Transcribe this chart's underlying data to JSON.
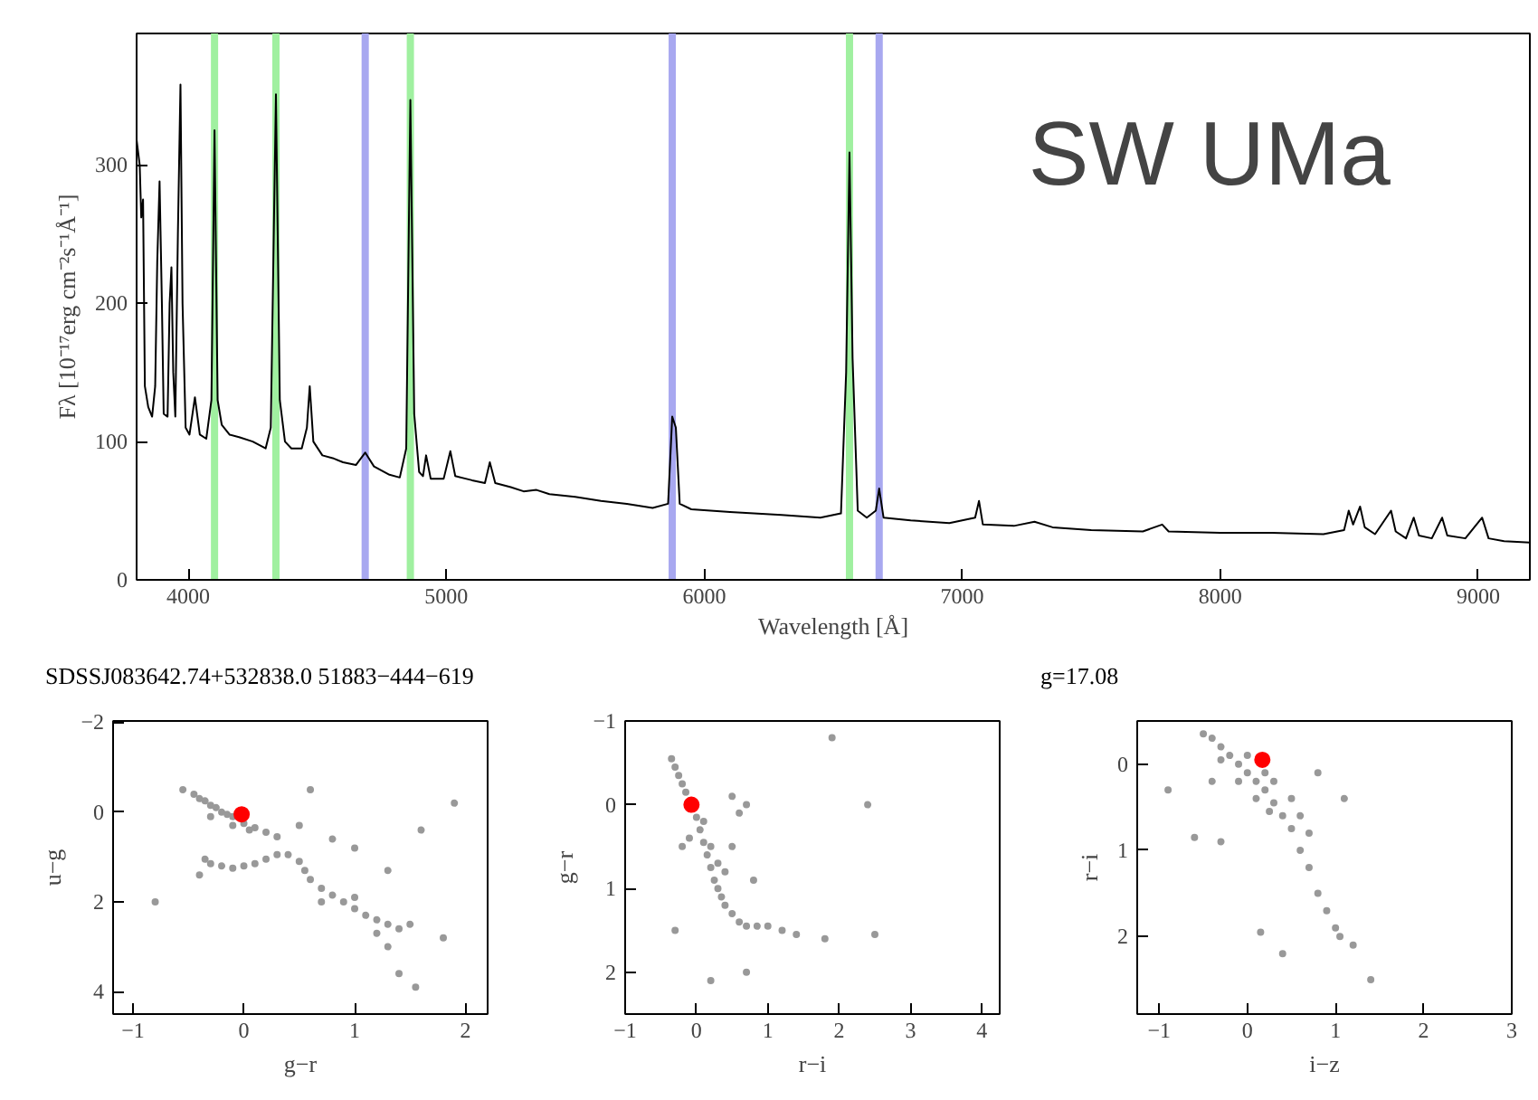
{
  "chart_data": [
    {
      "type": "line",
      "xlabel": "Wavelength [Å]",
      "ylabel": "Fλ [10⁻¹⁷erg cm⁻²s⁻¹Å⁻¹]",
      "annotations": [
        "SW UMa",
        "SDSSJ083642.74+532838.0  51883−444−619",
        "g=17.08"
      ],
      "xlim": [
        3800,
        9200
      ],
      "ylim": [
        0,
        395
      ],
      "xticks": [
        4000,
        5000,
        6000,
        7000,
        8000,
        9000
      ],
      "yticks": [
        0,
        100,
        200,
        300
      ],
      "grid": false,
      "marker": "none",
      "line_style": "solid",
      "ref_lines": [
        {
          "axis": "x",
          "value": 4102,
          "color": "#a0f0a0"
        },
        {
          "axis": "x",
          "value": 4340,
          "color": "#a0f0a0"
        },
        {
          "axis": "x",
          "value": 4686,
          "color": "#a8a8f0"
        },
        {
          "axis": "x",
          "value": 4861,
          "color": "#a0f0a0"
        },
        {
          "axis": "x",
          "value": 5876,
          "color": "#a8a8f0"
        },
        {
          "axis": "x",
          "value": 6563,
          "color": "#a0f0a0"
        },
        {
          "axis": "x",
          "value": 6678,
          "color": "#a8a8f0"
        }
      ],
      "series": [
        {
          "color": "#000000",
          "x": [
            3800,
            3812,
            3818,
            3825,
            3832,
            3845,
            3860,
            3872,
            3880,
            3889,
            3898,
            3905,
            3920,
            3928,
            3935,
            3942,
            3950,
            3960,
            3970,
            3978,
            3990,
            4005,
            4026,
            4045,
            4070,
            4090,
            4102,
            4114,
            4130,
            4160,
            4200,
            4250,
            4300,
            4320,
            4340,
            4355,
            4375,
            4400,
            4440,
            4460,
            4471,
            4485,
            4520,
            4560,
            4600,
            4650,
            4686,
            4720,
            4780,
            4820,
            4845,
            4861,
            4876,
            4895,
            4910,
            4922,
            4940,
            4990,
            5016,
            5035,
            5100,
            5150,
            5169,
            5190,
            5250,
            5300,
            5350,
            5400,
            5500,
            5600,
            5700,
            5800,
            5860,
            5876,
            5890,
            5905,
            5950,
            6100,
            6300,
            6450,
            6530,
            6550,
            6563,
            6575,
            6595,
            6630,
            6665,
            6678,
            6695,
            6800,
            6950,
            7050,
            7065,
            7080,
            7200,
            7280,
            7350,
            7500,
            7700,
            7775,
            7800,
            8000,
            8200,
            8400,
            8480,
            8498,
            8515,
            8542,
            8560,
            8600,
            8662,
            8680,
            8720,
            8750,
            8770,
            8820,
            8860,
            8880,
            8950,
            9015,
            9040,
            9100,
            9200
          ],
          "values": [
            318,
            300,
            262,
            275,
            140,
            125,
            118,
            140,
            230,
            288,
            200,
            120,
            118,
            200,
            226,
            150,
            118,
            250,
            358,
            200,
            110,
            105,
            132,
            105,
            102,
            130,
            325,
            130,
            112,
            105,
            103,
            100,
            95,
            110,
            351,
            130,
            100,
            95,
            95,
            110,
            140,
            100,
            90,
            88,
            85,
            83,
            92,
            82,
            76,
            74,
            95,
            347,
            120,
            78,
            75,
            90,
            73,
            73,
            93,
            75,
            72,
            70,
            85,
            70,
            67,
            64,
            65,
            62,
            60,
            57,
            55,
            52,
            55,
            118,
            110,
            55,
            51,
            49,
            47,
            45,
            48,
            150,
            309,
            160,
            50,
            45,
            50,
            66,
            45,
            43,
            41,
            45,
            57,
            40,
            39,
            42,
            38,
            36,
            35,
            40,
            35,
            34,
            34,
            33,
            36,
            50,
            40,
            53,
            38,
            33,
            50,
            35,
            30,
            45,
            32,
            30,
            45,
            32,
            30,
            45,
            30,
            28,
            27
          ]
        }
      ]
    },
    {
      "type": "scatter",
      "xlabel": "g−r",
      "ylabel": "u−g",
      "xlim": [
        -1.18,
        2.2
      ],
      "ylim": [
        4.5,
        -2.03
      ],
      "xticks": [
        -1,
        0,
        1,
        2
      ],
      "yticks": [
        -2,
        0,
        2,
        4
      ],
      "grid": false,
      "marker": "circle",
      "series": [
        {
          "color": "#999999",
          "x": [
            -0.55,
            -0.45,
            -0.4,
            -0.35,
            -0.3,
            -0.25,
            -0.2,
            -0.15,
            -0.1,
            0,
            0.1,
            0.2,
            0.3,
            -0.3,
            -0.1,
            0.05,
            -0.35,
            -0.3,
            -0.2,
            -0.1,
            0,
            0.1,
            0.2,
            0.3,
            0.4,
            0.5,
            0.55,
            0.6,
            0.7,
            0.8,
            0.9,
            1.0,
            1.1,
            1.2,
            1.3,
            1.4,
            1.5,
            1.0,
            1.2,
            0.7,
            0.5,
            0.8,
            1.0,
            1.3,
            1.6,
            1.3,
            1.4,
            1.55,
            1.8,
            -0.8,
            -0.4,
            0.6,
            1.9
          ],
          "values": [
            -0.5,
            -0.4,
            -0.3,
            -0.25,
            -0.15,
            -0.1,
            0.0,
            0.05,
            0.1,
            0.25,
            0.35,
            0.45,
            0.55,
            0.1,
            0.3,
            0.4,
            1.05,
            1.15,
            1.2,
            1.25,
            1.2,
            1.15,
            1.05,
            0.95,
            0.95,
            1.1,
            1.3,
            1.5,
            1.7,
            1.85,
            2.0,
            2.15,
            2.3,
            2.4,
            2.5,
            2.6,
            2.5,
            1.9,
            2.7,
            2.0,
            0.3,
            0.6,
            0.8,
            1.3,
            0.4,
            3.0,
            3.6,
            3.9,
            2.8,
            2.0,
            1.4,
            -0.5,
            -0.2
          ]
        },
        {
          "color": "#ff0000",
          "x": [
            -0.02
          ],
          "values": [
            0.05
          ]
        }
      ]
    },
    {
      "type": "scatter",
      "xlabel": "r−i",
      "ylabel": "g−r",
      "xlim": [
        -1.0,
        4.25
      ],
      "ylim": [
        2.5,
        -1.0
      ],
      "xticks": [
        -1,
        0,
        1,
        2,
        3,
        4
      ],
      "yticks": [
        -1,
        0,
        1,
        2
      ],
      "grid": false,
      "marker": "circle",
      "series": [
        {
          "color": "#999999",
          "x": [
            -0.35,
            -0.3,
            -0.25,
            -0.2,
            -0.15,
            0,
            0.05,
            0.1,
            0.15,
            0.2,
            0.25,
            0.3,
            0.35,
            0.4,
            0.5,
            0.6,
            0.7,
            0.85,
            1.0,
            1.2,
            1.4,
            0.1,
            0.2,
            0.3,
            0.5,
            0.6,
            0.7,
            0.5,
            0.8,
            0.4,
            -0.1,
            -0.2,
            1.8,
            2.5,
            1.9,
            0.2,
            0.7,
            -0.3,
            2.4
          ],
          "values": [
            -0.55,
            -0.45,
            -0.35,
            -0.25,
            -0.15,
            0.15,
            0.3,
            0.45,
            0.6,
            0.75,
            0.9,
            1.0,
            1.1,
            1.2,
            1.3,
            1.4,
            1.45,
            1.45,
            1.45,
            1.5,
            1.55,
            0.2,
            0.5,
            0.7,
            -0.1,
            0.1,
            0.0,
            0.5,
            0.9,
            0.8,
            0.4,
            0.5,
            1.6,
            1.55,
            -0.8,
            2.1,
            2.0,
            1.5,
            0.0
          ]
        },
        {
          "color": "#ff0000",
          "x": [
            -0.07
          ],
          "values": [
            0.0
          ]
        }
      ]
    },
    {
      "type": "scatter",
      "xlabel": "i−z",
      "ylabel": "r−i",
      "xlim": [
        -1.25,
        3.0
      ],
      "ylim": [
        2.9,
        -0.5
      ],
      "xticks": [
        -1,
        0,
        1,
        2,
        3
      ],
      "yticks": [
        0,
        1,
        2
      ],
      "grid": false,
      "marker": "circle",
      "series": [
        {
          "color": "#999999",
          "x": [
            -0.5,
            -0.4,
            -0.3,
            -0.2,
            -0.1,
            0,
            0.1,
            0.2,
            0.3,
            0.4,
            0.5,
            -0.3,
            -0.1,
            0.1,
            0.25,
            0.0,
            0.2,
            0.3,
            0.5,
            0.6,
            0.7,
            0.6,
            0.7,
            0.8,
            0.9,
            1.0,
            1.05,
            -0.9,
            -0.6,
            -0.4,
            0.8,
            1.1,
            0.15,
            0.4,
            1.2,
            1.4,
            -0.3
          ],
          "values": [
            -0.35,
            -0.3,
            -0.2,
            -0.1,
            0.0,
            0.1,
            0.2,
            0.3,
            0.45,
            0.6,
            0.75,
            -0.05,
            0.2,
            0.4,
            0.55,
            -0.1,
            0.1,
            0.2,
            0.4,
            0.6,
            0.8,
            1.0,
            1.2,
            1.5,
            1.7,
            1.9,
            2.0,
            0.3,
            0.85,
            0.2,
            0.1,
            0.4,
            1.95,
            2.2,
            2.1,
            2.5,
            0.9
          ]
        },
        {
          "color": "#ff0000",
          "x": [
            0.17
          ],
          "values": [
            -0.05
          ]
        }
      ]
    }
  ]
}
